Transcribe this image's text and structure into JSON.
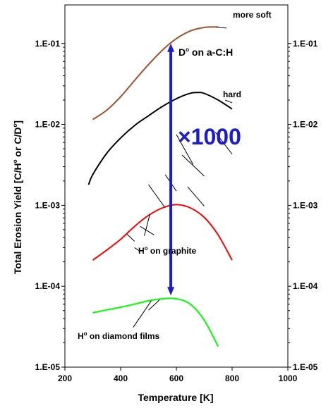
{
  "chart_data": {
    "type": "line",
    "xlabel": "Temperature [K]",
    "ylabel_main": "Total Erosion Yield [C/H",
    "ylabel_mid": " or C/D",
    "ylabel_end": "]",
    "ylabel_sup": "o",
    "y_scale": "log",
    "xlim": [
      200,
      1000
    ],
    "ylim": [
      1e-05,
      0.3
    ],
    "x_ticks": [
      200,
      400,
      600,
      800,
      1000
    ],
    "x_tick_labels": [
      "200",
      "400",
      "600",
      "800",
      "1000"
    ],
    "y_ticks": [
      1e-05,
      0.0001,
      0.001,
      0.01,
      0.1
    ],
    "y_tick_labels": [
      "1.E-05",
      "1.E-04",
      "1.E-03",
      "1.E-02",
      "1.E-01"
    ],
    "grid": false,
    "series": [
      {
        "key": "soft",
        "color": "#a0522d",
        "x": [
          300,
          350,
          400,
          450,
          500,
          550,
          600,
          650,
          700,
          750
        ],
        "y": [
          0.0115,
          0.015,
          0.022,
          0.035,
          0.055,
          0.083,
          0.115,
          0.143,
          0.158,
          0.16
        ]
      },
      {
        "key": "hard",
        "color": "#000000",
        "x": [
          285,
          300,
          350,
          400,
          450,
          500,
          550,
          600,
          650,
          680,
          700,
          750,
          800
        ],
        "y": [
          0.0018,
          0.0024,
          0.0044,
          0.0068,
          0.0097,
          0.0128,
          0.0167,
          0.0208,
          0.0243,
          0.0248,
          0.0242,
          0.02,
          0.0155
        ]
      },
      {
        "key": "graphite",
        "color": "#ff0000",
        "x": [
          300,
          350,
          400,
          450,
          500,
          550,
          600,
          650,
          700,
          750,
          800
        ],
        "y": [
          0.00021,
          0.00028,
          0.00038,
          0.00055,
          0.00075,
          0.00093,
          0.00102,
          0.00093,
          0.00071,
          0.00043,
          0.00021
        ]
      },
      {
        "key": "diamond",
        "color": "#00ff00",
        "x": [
          300,
          350,
          400,
          450,
          500,
          550,
          600,
          650,
          700,
          750
        ],
        "y": [
          4.7e-05,
          5.1e-05,
          5.5e-05,
          6e-05,
          6.6e-05,
          7e-05,
          7e-05,
          6e-05,
          3.8e-05,
          1.8e-05
        ]
      }
    ],
    "arrow": {
      "x": 580,
      "y_from": 7.7e-05,
      "y_to": 0.1,
      "color": "#1c1ccc"
    },
    "hatch_marks": [
      {
        "x1": 600,
        "y1": 0.0075,
        "x2": 660,
        "y2": 0.0032
      },
      {
        "x1": 620,
        "y1": 0.0042,
        "x2": 700,
        "y2": 0.0023
      },
      {
        "x1": 740,
        "y1": 0.008,
        "x2": 800,
        "y2": 0.0043
      },
      {
        "x1": 640,
        "y1": 0.0017,
        "x2": 700,
        "y2": 0.00098
      },
      {
        "x1": 560,
        "y1": 0.0024,
        "x2": 600,
        "y2": 0.0015
      },
      {
        "x1": 500,
        "y1": 0.0018,
        "x2": 560,
        "y2": 0.00093
      },
      {
        "x1": 470,
        "y1": 0.00055,
        "x2": 520,
        "y2": 0.00043
      },
      {
        "x1": 420,
        "y1": 0.00045,
        "x2": 450,
        "y2": 0.00036
      },
      {
        "x1": 450,
        "y1": 0.0003,
        "x2": 470,
        "y2": 0.00027
      },
      {
        "x1": 500,
        "y1": 5.05e-05,
        "x2": 540,
        "y2": 6.8e-05
      }
    ],
    "annotations": {
      "more_soft": "more soft",
      "hard": "hard",
      "factor": "×1000",
      "d_on_ac_pre": "D",
      "d_on_ac_sup": "o",
      "d_on_ac_post": " on  a-C:H",
      "h_graphite_pre": "H",
      "h_graphite_sup": "o",
      "h_graphite_post": " on graphite",
      "h_diamond_pre": "H",
      "h_diamond_sup": "o",
      "h_diamond_post": " on diamond films"
    }
  }
}
